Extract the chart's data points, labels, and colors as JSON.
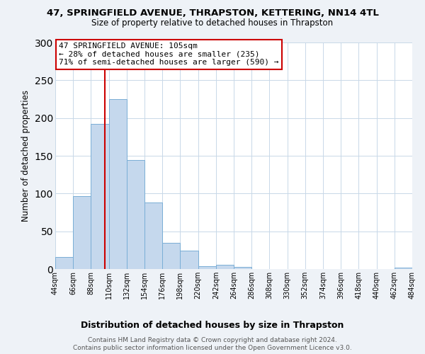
{
  "title": "47, SPRINGFIELD AVENUE, THRAPSTON, KETTERING, NN14 4TL",
  "subtitle": "Size of property relative to detached houses in Thrapston",
  "xlabel": "Distribution of detached houses by size in Thrapston",
  "ylabel": "Number of detached properties",
  "bar_edges": [
    44,
    66,
    88,
    110,
    132,
    154,
    176,
    198,
    220,
    242,
    264,
    286,
    308,
    330,
    352,
    374,
    396,
    418,
    440,
    462,
    484
  ],
  "bar_heights": [
    16,
    97,
    192,
    225,
    144,
    88,
    35,
    24,
    4,
    6,
    3,
    0,
    0,
    0,
    0,
    0,
    0,
    0,
    0,
    2
  ],
  "bar_color": "#c5d8ed",
  "bar_edge_color": "#7aaed6",
  "property_size": 105,
  "vline_color": "#cc0000",
  "annotation_line1": "47 SPRINGFIELD AVENUE: 105sqm",
  "annotation_line2": "← 28% of detached houses are smaller (235)",
  "annotation_line3": "71% of semi-detached houses are larger (590) →",
  "annotation_box_color": "#ffffff",
  "annotation_box_edge_color": "#cc0000",
  "ylim": [
    0,
    300
  ],
  "yticks": [
    0,
    50,
    100,
    150,
    200,
    250,
    300
  ],
  "tick_labels": [
    "44sqm",
    "66sqm",
    "88sqm",
    "110sqm",
    "132sqm",
    "154sqm",
    "176sqm",
    "198sqm",
    "220sqm",
    "242sqm",
    "264sqm",
    "286sqm",
    "308sqm",
    "330sqm",
    "352sqm",
    "374sqm",
    "396sqm",
    "418sqm",
    "440sqm",
    "462sqm",
    "484sqm"
  ],
  "footer_line1": "Contains HM Land Registry data © Crown copyright and database right 2024.",
  "footer_line2": "Contains public sector information licensed under the Open Government Licence v3.0.",
  "bg_color": "#eef2f7",
  "plot_bg_color": "#ffffff",
  "grid_color": "#c8d8e8",
  "title_fontsize": 9.5,
  "subtitle_fontsize": 8.5,
  "ylabel_fontsize": 8.5,
  "xlabel_fontsize": 9,
  "tick_fontsize": 7,
  "annot_fontsize": 8,
  "footer_fontsize": 6.5
}
